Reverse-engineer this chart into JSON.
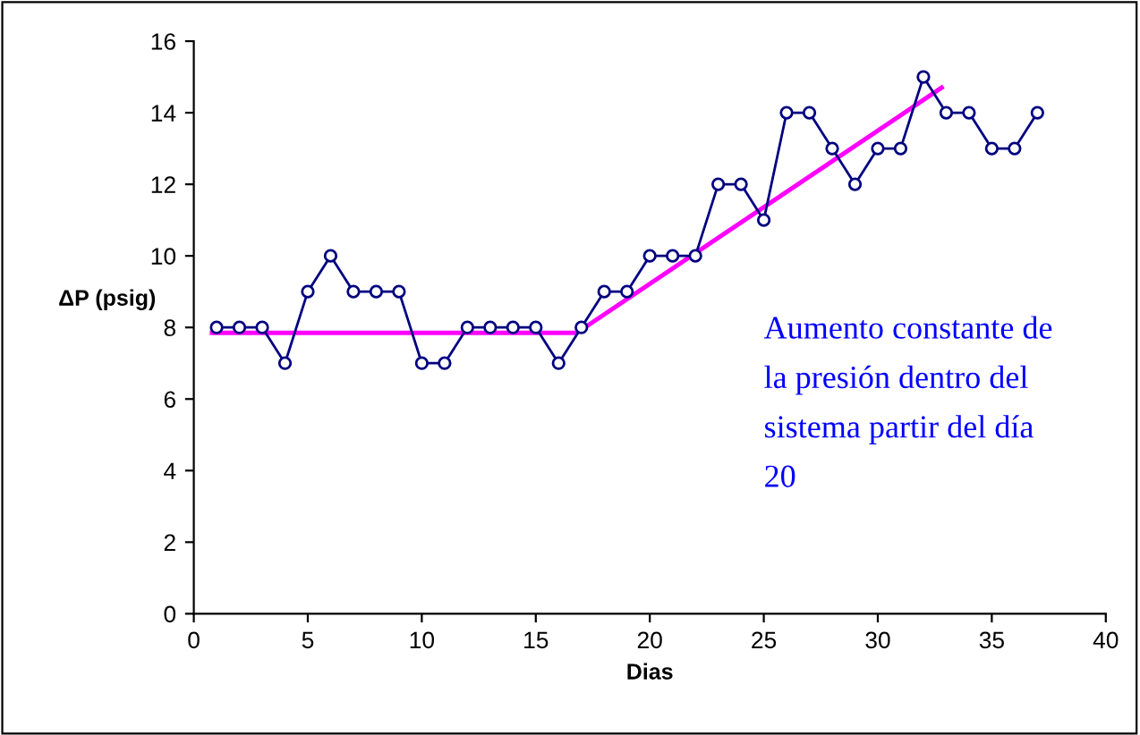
{
  "chart_data": {
    "type": "line",
    "xlabel": "Dias",
    "ylabel": "ΔP (psig)",
    "xlim": [
      0,
      40
    ],
    "xticks": [
      0,
      5,
      10,
      15,
      20,
      25,
      30,
      35,
      40
    ],
    "ylim": [
      0,
      16
    ],
    "yticks": [
      0,
      2,
      4,
      6,
      8,
      10,
      12,
      14,
      16
    ],
    "grid": false,
    "legend": false,
    "marker": "circle",
    "line_style": "solid",
    "series": [
      {
        "color": "#000080",
        "x": [
          1,
          2,
          3,
          4,
          5,
          6,
          7,
          8,
          9,
          10,
          11,
          12,
          13,
          14,
          15,
          16,
          17,
          18,
          19,
          20,
          21,
          22,
          23,
          24,
          25,
          26,
          27,
          28,
          29,
          30,
          31,
          32,
          33,
          34,
          35,
          36,
          37
        ],
        "values": [
          8,
          8,
          8,
          7,
          9,
          10,
          9,
          9,
          9,
          7,
          7,
          8,
          8,
          8,
          8,
          7,
          8,
          9,
          9,
          10,
          10,
          10,
          12,
          12,
          11,
          14,
          14,
          13,
          12,
          13,
          13,
          15,
          14,
          14,
          13,
          13,
          14
        ]
      },
      {
        "color": "#ff00ff",
        "marker": "none",
        "x": [
          0.8,
          16.8,
          32.8
        ],
        "values": [
          7.85,
          7.85,
          14.7
        ]
      }
    ],
    "annotations": [
      "Aumento constante de\nla presión dentro del\nsistema partir del día\n20"
    ]
  }
}
